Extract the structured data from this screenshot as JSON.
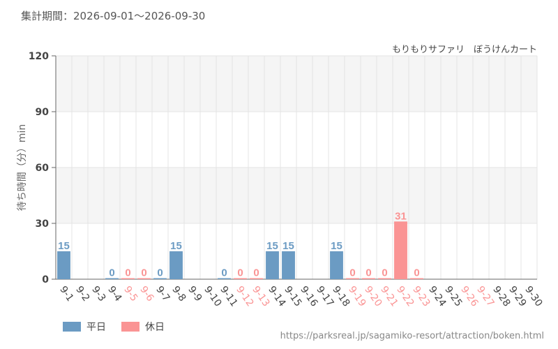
{
  "period_text": "集計期間：2026-09-01～2026-09-30",
  "source_url": "https://parksreal.jp/sagamiko-resort/attraction/boken.html",
  "colors": {
    "weekday": "#6b9bc3",
    "holiday": "#fa9494",
    "axis_text": "#444444",
    "grid": "#e4e4e4",
    "band": "#f5f5f5"
  },
  "chart_data": {
    "type": "bar",
    "subtitle": "もりもりサファリ　ぼうけんカート",
    "ylabel": "待ち時間（分）min",
    "ylim": [
      0,
      120
    ],
    "yticks": [
      0,
      30,
      60,
      90,
      120
    ],
    "grid": true,
    "legend_placement": "bottom-left",
    "categories": [
      "9-1",
      "9-2",
      "9-3",
      "9-4",
      "9-5",
      "9-6",
      "9-7",
      "9-8",
      "9-9",
      "9-10",
      "9-11",
      "9-12",
      "9-13",
      "9-14",
      "9-15",
      "9-16",
      "9-17",
      "9-18",
      "9-19",
      "9-20",
      "9-21",
      "9-22",
      "9-23",
      "9-24",
      "9-25",
      "9-26",
      "9-27",
      "9-28",
      "9-29",
      "9-30"
    ],
    "values": [
      15,
      null,
      null,
      0,
      0,
      0,
      0,
      15,
      null,
      null,
      0,
      0,
      0,
      15,
      15,
      null,
      null,
      15,
      0,
      0,
      0,
      31,
      0,
      null,
      null,
      null,
      null,
      null,
      null,
      null
    ],
    "day_type": [
      "weekday",
      "weekday",
      "weekday",
      "weekday",
      "holiday",
      "holiday",
      "weekday",
      "weekday",
      "weekday",
      "weekday",
      "weekday",
      "holiday",
      "holiday",
      "weekday",
      "weekday",
      "weekday",
      "weekday",
      "weekday",
      "holiday",
      "holiday",
      "holiday",
      "holiday",
      "holiday",
      "weekday",
      "weekday",
      "holiday",
      "holiday",
      "weekday",
      "weekday",
      "weekday"
    ],
    "series": [
      {
        "name": "平日",
        "key": "weekday"
      },
      {
        "name": "休日",
        "key": "holiday"
      }
    ]
  }
}
